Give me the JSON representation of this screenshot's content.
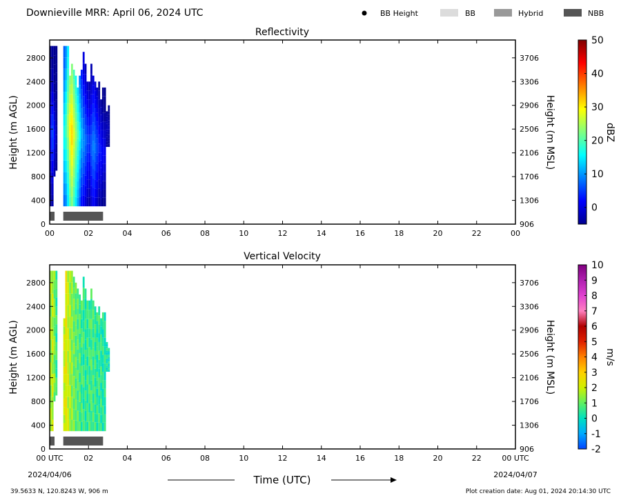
{
  "header": {
    "title": "Downieville MRR:  April 06, 2024 UTC",
    "legend": [
      {
        "label": "BB Height",
        "kind": "dot",
        "color": "#000000"
      },
      {
        "label": "BB",
        "kind": "swatch",
        "color": "#dcdcdc"
      },
      {
        "label": "Hybrid",
        "kind": "swatch",
        "color": "#999999"
      },
      {
        "label": "NBB",
        "kind": "swatch",
        "color": "#555555"
      }
    ]
  },
  "footer": {
    "location": "39.5633 N, 120.8243 W, 906 m",
    "creation": "Plot creation date: Aug 01, 2024 20:14:30 UTC",
    "time_axis_label": "Time (UTC)",
    "date_start": "2024/04/06",
    "date_end": "2024/04/07"
  },
  "chart_data": [
    {
      "type": "heatmap",
      "title": "Reflectivity",
      "ylabel": "Height (m AGL)",
      "ylabel_right": "Height (m MSL)",
      "colorbar_label": "dBZ",
      "xlim": [
        0,
        24
      ],
      "ylim": [
        0,
        3100
      ],
      "x_ticks": [
        "00",
        "02",
        "04",
        "06",
        "08",
        "10",
        "12",
        "14",
        "16",
        "18",
        "20",
        "22",
        "00"
      ],
      "y_ticks": [
        0,
        400,
        800,
        1200,
        1600,
        2000,
        2400,
        2800
      ],
      "y2_ticks": [
        906,
        1306,
        1706,
        2106,
        2506,
        2906,
        3306,
        3706
      ],
      "colorbar": {
        "min": -5,
        "max": 50,
        "ticks": [
          0,
          10,
          20,
          30,
          40,
          50
        ],
        "colors": [
          "#00008f",
          "#0000ff",
          "#0080ff",
          "#00ffff",
          "#80ff80",
          "#ffff00",
          "#ff8000",
          "#ff0000",
          "#800000"
        ]
      },
      "time_columns_hours": [
        0.0,
        0.1,
        0.2,
        0.3,
        0.7,
        0.8,
        0.9,
        1.0,
        1.1,
        1.2,
        1.3,
        1.4,
        1.5,
        1.6,
        1.7,
        1.8,
        1.9,
        2.0,
        2.1,
        2.2,
        2.3,
        2.4,
        2.5,
        2.6,
        2.7,
        2.8,
        2.9,
        3.0
      ],
      "column_tops_m": [
        3000,
        3000,
        3000,
        3000,
        3000,
        3000,
        3000,
        2500,
        2700,
        2600,
        2500,
        2300,
        2500,
        2600,
        2900,
        2700,
        2400,
        2400,
        2700,
        2500,
        2400,
        2300,
        2400,
        2100,
        2300,
        2300,
        1900,
        2000
      ],
      "column_bottoms_m": [
        300,
        300,
        800,
        900,
        300,
        300,
        300,
        300,
        300,
        300,
        300,
        300,
        300,
        300,
        300,
        300,
        300,
        300,
        300,
        300,
        300,
        300,
        300,
        300,
        300,
        300,
        1300,
        1300
      ],
      "column_peak_dbz": [
        3,
        6,
        2,
        -3,
        17,
        20,
        25,
        30,
        32,
        28,
        24,
        20,
        16,
        12,
        10,
        8,
        6,
        5,
        7,
        9,
        8,
        6,
        4,
        3,
        2,
        1,
        -2,
        -3
      ],
      "column_peak_height_m": [
        1500,
        1500,
        1500,
        1500,
        1500,
        1600,
        1700,
        1600,
        1500,
        1500,
        1500,
        1500,
        1500,
        1500,
        1400,
        1400,
        1400,
        1400,
        1300,
        1300,
        1300,
        1300,
        1300,
        1200,
        1200,
        1200,
        1600,
        1600
      ],
      "bright_band": [
        {
          "start_hour": 0.0,
          "end_hour": 0.25,
          "type": "NBB"
        },
        {
          "start_hour": 0.7,
          "end_hour": 2.75,
          "type": "NBB"
        }
      ]
    },
    {
      "type": "heatmap",
      "title": "Vertical Velocity",
      "ylabel": "Height (m AGL)",
      "ylabel_right": "Height (m MSL)",
      "colorbar_label": "m/s",
      "xlim": [
        0,
        24
      ],
      "ylim": [
        0,
        3100
      ],
      "x_ticks": [
        "00 UTC",
        "02",
        "04",
        "06",
        "08",
        "10",
        "12",
        "14",
        "16",
        "18",
        "20",
        "22",
        "00 UTC"
      ],
      "y_ticks": [
        0,
        400,
        800,
        1200,
        1600,
        2000,
        2400,
        2800
      ],
      "y2_ticks": [
        906,
        1306,
        1706,
        2106,
        2506,
        2906,
        3306,
        3706
      ],
      "colorbar": {
        "min": -2,
        "max": 10,
        "ticks": [
          -2,
          -1,
          0,
          1,
          2,
          3,
          4,
          5,
          6,
          7,
          8,
          9,
          10
        ],
        "colors": [
          "#0044ff",
          "#00aaff",
          "#00e0c0",
          "#60f060",
          "#d0f000",
          "#ffd000",
          "#ff8000",
          "#e02000",
          "#b00000",
          "#ff80c0",
          "#e040d0",
          "#b020b0",
          "#800080"
        ]
      },
      "time_columns_hours": [
        0.0,
        0.1,
        0.2,
        0.3,
        0.7,
        0.8,
        0.9,
        1.0,
        1.1,
        1.2,
        1.3,
        1.4,
        1.5,
        1.6,
        1.7,
        1.8,
        1.9,
        2.0,
        2.1,
        2.2,
        2.3,
        2.4,
        2.5,
        2.6,
        2.7,
        2.8,
        2.9,
        3.0
      ],
      "column_tops_m": [
        3000,
        3000,
        3000,
        3000,
        2200,
        3000,
        3000,
        3000,
        3000,
        2900,
        2800,
        2700,
        2600,
        2500,
        2900,
        2700,
        2500,
        2500,
        2700,
        2500,
        2400,
        2300,
        2400,
        2200,
        2300,
        2300,
        1800,
        1700
      ],
      "column_bottoms_m": [
        300,
        300,
        800,
        900,
        300,
        300,
        300,
        300,
        300,
        300,
        300,
        300,
        300,
        300,
        300,
        300,
        300,
        300,
        300,
        300,
        300,
        300,
        300,
        300,
        300,
        300,
        1300,
        1300
      ],
      "column_mean_ms": [
        1.5,
        1.8,
        1.2,
        0.5,
        2.0,
        2.4,
        1.9,
        1.6,
        1.3,
        1.1,
        0.9,
        0.8,
        0.7,
        0.6,
        0.5,
        0.4,
        0.5,
        0.6,
        0.7,
        0.6,
        0.5,
        0.4,
        0.5,
        0.4,
        0.3,
        0.3,
        0.2,
        0.1
      ],
      "bright_band": [
        {
          "start_hour": 0.0,
          "end_hour": 0.25,
          "type": "NBB"
        },
        {
          "start_hour": 0.7,
          "end_hour": 2.75,
          "type": "NBB"
        }
      ]
    }
  ]
}
